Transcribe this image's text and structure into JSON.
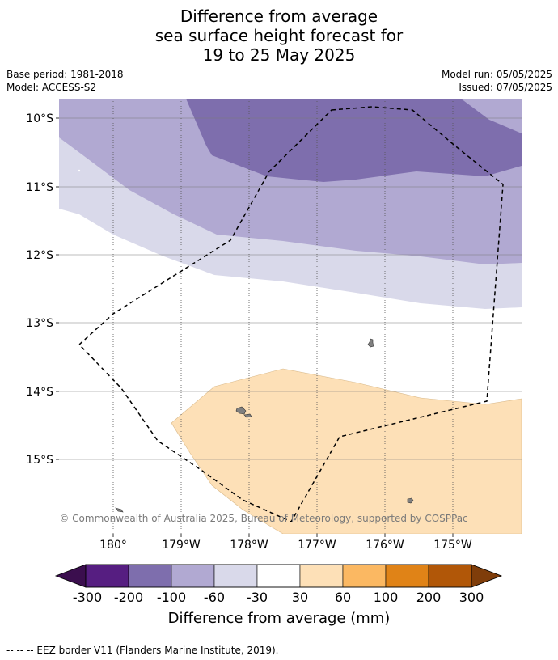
{
  "title": {
    "line1": "Difference from average",
    "line2": "sea surface height forecast for",
    "line3": "19 to 25 May 2025"
  },
  "meta": {
    "base_period": "Base period: 1981-2018",
    "model": "Model: ACCESS-S2",
    "model_run": "Model run: 05/05/2025",
    "issued": "Issued: 07/05/2025"
  },
  "map": {
    "lat_labels": [
      "10°S",
      "11°S",
      "12°S",
      "13°S",
      "14°S",
      "15°S"
    ],
    "lon_labels": [
      "180°",
      "179°W",
      "178°W",
      "177°W",
      "176°W",
      "175°W"
    ],
    "copyright": "© Commonwealth of Australia 2025, Bureau of Meteorology, supported by COSPPac",
    "colors": {
      "neg_200_100": "#7e6ead",
      "neg_100_60": "#b1a9d2",
      "neg_60_30": "#d9d9ea",
      "pos_30_60": "#fde0b7",
      "land": "#808080"
    }
  },
  "colorbar": {
    "ticks": [
      "-300",
      "-200",
      "-100",
      "-60",
      "-30",
      "30",
      "60",
      "100",
      "200",
      "300"
    ],
    "colors": [
      "#561e81",
      "#7e6ead",
      "#b1a9d2",
      "#d9d9ea",
      "#ffffff",
      "#fde0b7",
      "#fbb862",
      "#e08317",
      "#b15708"
    ],
    "extend_low_color": "#3b0e4e",
    "extend_high_color": "#7f3d0a",
    "label": "Difference from average (mm)"
  },
  "footer": "-- -- -- EEZ border V11 (Flanders Marine Institute, 2019)."
}
